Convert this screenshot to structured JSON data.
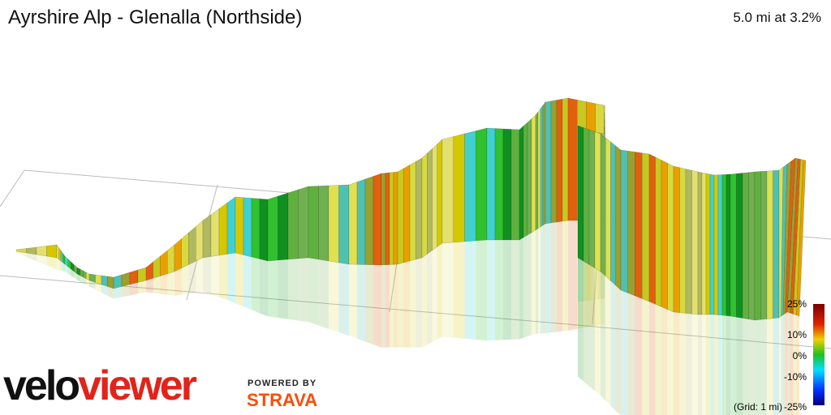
{
  "header": {
    "title": "Ayrshire Alp - Glenalla (Northside)",
    "summary": "5.0 mi at 3.2%"
  },
  "legend": {
    "ticks": [
      "25%",
      "10%",
      "0%",
      "-10%",
      "-25%"
    ],
    "grid_note": "(Grid: 1 mi)"
  },
  "branding": {
    "logo_velo": "velo",
    "logo_viewer": "viewer",
    "powered_by": "POWERED BY",
    "partner": "STRAVA"
  }
}
